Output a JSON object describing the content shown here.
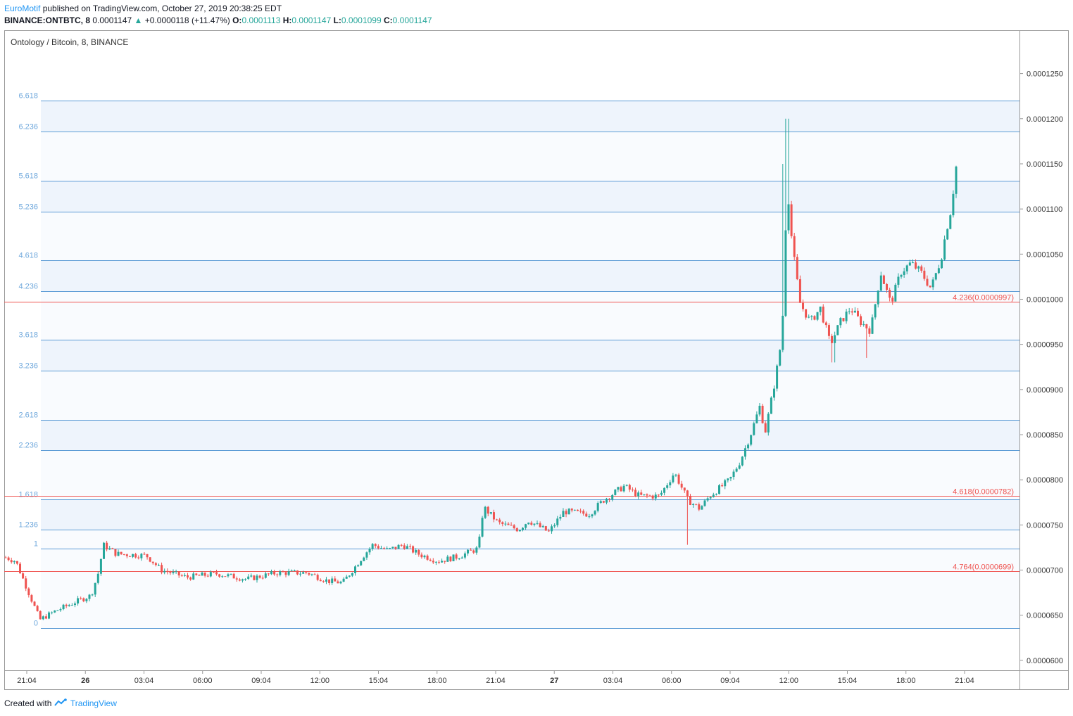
{
  "header": {
    "brand": "EuroMotif",
    "published": "published on TradingView.com, October 27, 2019 20:38:25 EDT",
    "symbol_line": "BINANCE:ONTBTC, 8",
    "last_price": "0.0001147",
    "change": "+0.0000118 (+11.47%)",
    "open_label": "O:",
    "open": "0.0001113",
    "high_label": "H:",
    "high": "0.0001147",
    "low_label": "L:",
    "low": "0.0001099",
    "close_label": "C:",
    "close": "0.0001147",
    "up_arrow": "▲"
  },
  "chart_title": "Ontology / Bitcoin, 8, BINANCE",
  "footer": {
    "created_with": "Created with",
    "brand": "TradingView"
  },
  "colors": {
    "up": "#26a69a",
    "down": "#ef5350",
    "fib_line": "#5b9bd5",
    "fib_label": "#6fa8dc",
    "red_line": "#ef5350",
    "band": "#eef4fc"
  },
  "chart_data": {
    "type": "candlestick",
    "ylim": [
      5.89e-05,
      0.0001298
    ],
    "y_ticks": [
      "0.0001250",
      "0.0001200",
      "0.0001150",
      "0.0001100",
      "0.0001050",
      "0.0001000",
      "0.0000950",
      "0.0000900",
      "0.0000850",
      "0.0000800",
      "0.0000750",
      "0.0000700",
      "0.0000650",
      "0.0000600"
    ],
    "x_ticks": [
      {
        "label": "21:04",
        "bold": false
      },
      {
        "label": "26",
        "bold": true
      },
      {
        "label": "03:04",
        "bold": false
      },
      {
        "label": "06:00",
        "bold": false
      },
      {
        "label": "09:04",
        "bold": false
      },
      {
        "label": "12:00",
        "bold": false
      },
      {
        "label": "15:04",
        "bold": false
      },
      {
        "label": "18:00",
        "bold": false
      },
      {
        "label": "21:04",
        "bold": false
      },
      {
        "label": "27",
        "bold": true
      },
      {
        "label": "03:04",
        "bold": false
      },
      {
        "label": "06:00",
        "bold": false
      },
      {
        "label": "09:04",
        "bold": false
      },
      {
        "label": "12:00",
        "bold": false
      },
      {
        "label": "15:04",
        "bold": false
      },
      {
        "label": "18:00",
        "bold": false
      },
      {
        "label": "21:04",
        "bold": false
      }
    ],
    "fib_levels": [
      {
        "label": "6.618",
        "price": 0.000122
      },
      {
        "label": "6.236",
        "price": 0.0001186
      },
      {
        "label": "5.618",
        "price": 0.0001131
      },
      {
        "label": "5.236",
        "price": 0.0001097
      },
      {
        "label": "4.618",
        "price": 0.0001043
      },
      {
        "label": "4.236",
        "price": 0.0001009
      },
      {
        "label": "3.618",
        "price": 9.55e-05
      },
      {
        "label": "3.236",
        "price": 9.21e-05
      },
      {
        "label": "2.618",
        "price": 8.66e-05
      },
      {
        "label": "2.236",
        "price": 8.33e-05
      },
      {
        "label": "1.618",
        "price": 7.78e-05
      },
      {
        "label": "1.236",
        "price": 7.45e-05
      },
      {
        "label": "1",
        "price": 7.24e-05
      },
      {
        "label": "0",
        "price": 6.36e-05
      }
    ],
    "shaded_bands": [
      [
        0.0001186,
        0.000122
      ],
      [
        0.0001097,
        0.0001131
      ],
      [
        0.0001009,
        0.0001043
      ],
      [
        9.21e-05,
        9.55e-05
      ],
      [
        8.33e-05,
        8.66e-05
      ],
      [
        7.45e-05,
        7.78e-05
      ]
    ],
    "horizontal_lines": [
      {
        "label": "4.236(0.0000997)",
        "price": 9.97e-05
      },
      {
        "label": "4.618(0.0000782)",
        "price": 7.82e-05
      },
      {
        "label": "4.764(0.0000699)",
        "price": 6.99e-05
      }
    ],
    "price_path": [
      {
        "t": 0,
        "p": 7.14e-05
      },
      {
        "t": 0.01,
        "p": 7.1e-05
      },
      {
        "t": 0.024,
        "p": 6.72e-05
      },
      {
        "t": 0.034,
        "p": 6.45e-05
      },
      {
        "t": 0.05,
        "p": 6.55e-05
      },
      {
        "t": 0.07,
        "p": 6.65e-05
      },
      {
        "t": 0.085,
        "p": 6.72e-05
      },
      {
        "t": 0.093,
        "p": 7e-05
      },
      {
        "t": 0.097,
        "p": 7.28e-05
      },
      {
        "t": 0.11,
        "p": 7.18e-05
      },
      {
        "t": 0.14,
        "p": 7.16e-05
      },
      {
        "t": 0.155,
        "p": 7e-05
      },
      {
        "t": 0.18,
        "p": 6.92e-05
      },
      {
        "t": 0.21,
        "p": 6.96e-05
      },
      {
        "t": 0.24,
        "p": 6.9e-05
      },
      {
        "t": 0.27,
        "p": 6.97e-05
      },
      {
        "t": 0.3,
        "p": 6.97e-05
      },
      {
        "t": 0.32,
        "p": 6.88e-05
      },
      {
        "t": 0.335,
        "p": 6.86e-05
      },
      {
        "t": 0.345,
        "p": 7e-05
      },
      {
        "t": 0.355,
        "p": 7.15e-05
      },
      {
        "t": 0.365,
        "p": 7.28e-05
      },
      {
        "t": 0.38,
        "p": 7.22e-05
      },
      {
        "t": 0.395,
        "p": 7.28e-05
      },
      {
        "t": 0.41,
        "p": 7.18e-05
      },
      {
        "t": 0.43,
        "p": 7.1e-05
      },
      {
        "t": 0.45,
        "p": 7.15e-05
      },
      {
        "t": 0.47,
        "p": 7.24e-05
      },
      {
        "t": 0.475,
        "p": 7.7e-05
      },
      {
        "t": 0.49,
        "p": 7.52e-05
      },
      {
        "t": 0.51,
        "p": 7.45e-05
      },
      {
        "t": 0.52,
        "p": 7.55e-05
      },
      {
        "t": 0.54,
        "p": 7.42e-05
      },
      {
        "t": 0.555,
        "p": 7.65e-05
      },
      {
        "t": 0.58,
        "p": 7.62e-05
      },
      {
        "t": 0.595,
        "p": 7.78e-05
      },
      {
        "t": 0.615,
        "p": 7.93e-05
      },
      {
        "t": 0.63,
        "p": 7.82e-05
      },
      {
        "t": 0.65,
        "p": 7.82e-05
      },
      {
        "t": 0.665,
        "p": 8.08e-05
      },
      {
        "t": 0.678,
        "p": 7.78e-05
      },
      {
        "t": 0.69,
        "p": 7.68e-05
      },
      {
        "t": 0.7,
        "p": 7.82e-05
      },
      {
        "t": 0.72,
        "p": 8e-05
      },
      {
        "t": 0.73,
        "p": 8.2e-05
      },
      {
        "t": 0.74,
        "p": 8.48e-05
      },
      {
        "t": 0.75,
        "p": 8.82e-05
      },
      {
        "t": 0.755,
        "p": 8.52e-05
      },
      {
        "t": 0.765,
        "p": 9.1e-05
      },
      {
        "t": 0.772,
        "p": 9.6e-05
      },
      {
        "t": 0.777,
        "p": 0.000113
      },
      {
        "t": 0.782,
        "p": 0.000106
      },
      {
        "t": 0.79,
        "p": 9.95e-05
      },
      {
        "t": 0.8,
        "p": 9.75e-05
      },
      {
        "t": 0.81,
        "p": 9.9e-05
      },
      {
        "t": 0.82,
        "p": 9.5e-05
      },
      {
        "t": 0.83,
        "p": 9.75e-05
      },
      {
        "t": 0.84,
        "p": 9.9e-05
      },
      {
        "t": 0.85,
        "p": 9.75e-05
      },
      {
        "t": 0.86,
        "p": 9.65e-05
      },
      {
        "t": 0.87,
        "p": 0.000103
      },
      {
        "t": 0.88,
        "p": 9.95e-05
      },
      {
        "t": 0.89,
        "p": 0.000103
      },
      {
        "t": 0.9,
        "p": 0.000104
      },
      {
        "t": 0.91,
        "p": 0.000103
      },
      {
        "t": 0.92,
        "p": 0.0001012
      },
      {
        "t": 0.93,
        "p": 0.0001045
      },
      {
        "t": 0.935,
        "p": 0.0001075
      },
      {
        "t": 0.94,
        "p": 0.00011
      },
      {
        "t": 0.945,
        "p": 0.0001147
      }
    ],
    "wick_spikes": [
      {
        "t": 0.777,
        "high": 0.00012
      },
      {
        "t": 0.773,
        "high": 0.000115
      },
      {
        "t": 0.678,
        "low": 7.28e-05
      },
      {
        "t": 0.823,
        "low": 9.3e-05
      },
      {
        "t": 0.856,
        "low": 9.35e-05
      }
    ]
  }
}
